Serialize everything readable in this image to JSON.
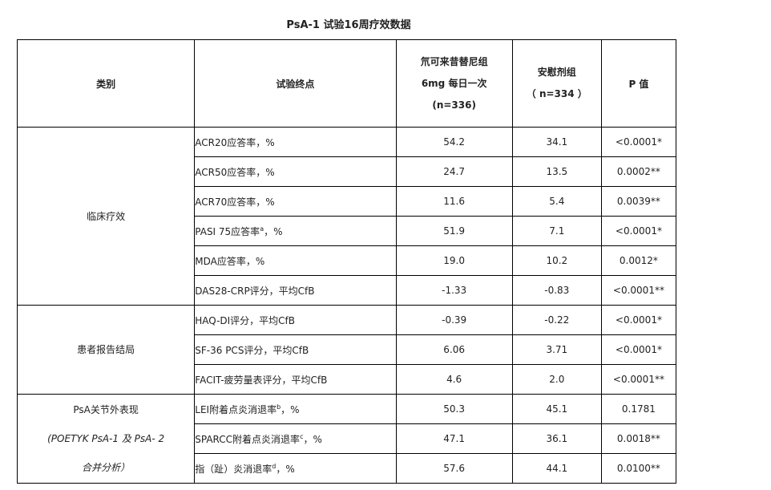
{
  "title": "PsA-1 试验16周疗效数据",
  "headers": {
    "category": "类别",
    "endpoint": "试验终点",
    "drug_line1": "氘可来昔替尼组",
    "drug_line2": "6mg 每日一次",
    "drug_line3": "(n=336)",
    "placebo_line1": "安慰剂组",
    "placebo_line2": "（ n=334 ）",
    "pvalue": "P 值"
  },
  "groups": [
    {
      "category": "临床疗效",
      "rows": [
        {
          "endpoint": "ACR20应答率，%",
          "sup": "",
          "suffix": "",
          "drug": "54.2",
          "placebo": "34.1",
          "p": "<0.0001*"
        },
        {
          "endpoint": "ACR50应答率，%",
          "sup": "",
          "suffix": "",
          "drug": "24.7",
          "placebo": "13.5",
          "p": "0.0002**"
        },
        {
          "endpoint": "ACR70应答率，%",
          "sup": "",
          "suffix": "",
          "drug": "11.6",
          "placebo": "5.4",
          "p": "0.0039**"
        },
        {
          "endpoint": "PASI 75应答率",
          "sup": "a",
          "suffix": "，%",
          "drug": "51.9",
          "placebo": "7.1",
          "p": "<0.0001*"
        },
        {
          "endpoint": "MDA应答率，%",
          "sup": "",
          "suffix": "",
          "drug": "19.0",
          "placebo": "10.2",
          "p": "0.0012*"
        },
        {
          "endpoint": "DAS28-CRP评分，平均CfB",
          "sup": "",
          "suffix": "",
          "drug": "-1.33",
          "placebo": "-0.83",
          "p": "<0.0001**"
        }
      ]
    },
    {
      "category": "患者报告结局",
      "rows": [
        {
          "endpoint": "HAQ-DI评分，平均CfB",
          "sup": "",
          "suffix": "",
          "drug": "-0.39",
          "placebo": "-0.22",
          "p": "<0.0001*"
        },
        {
          "endpoint": "SF-36 PCS评分，平均CfB",
          "sup": "",
          "suffix": "",
          "drug": "6.06",
          "placebo": "3.71",
          "p": "<0.0001*"
        },
        {
          "endpoint": "FACIT-疲劳量表评分，平均CfB",
          "sup": "",
          "suffix": "",
          "drug": "4.6",
          "placebo": "2.0",
          "p": "<0.0001**"
        }
      ]
    },
    {
      "category": "PsA关节外表现",
      "category_note_line1": "(POETYK PsA-1 及 PsA- 2",
      "category_note_line2": "合并分析）",
      "rows": [
        {
          "endpoint": "LEI附着点炎消退率",
          "sup": "b",
          "suffix": "，%",
          "drug": "50.3",
          "placebo": "45.1",
          "p": "0.1781"
        },
        {
          "endpoint": "SPARCC附着点炎消退率",
          "sup": "c",
          "suffix": "，%",
          "drug": "47.1",
          "placebo": "36.1",
          "p": "0.0018**"
        },
        {
          "endpoint": "指（趾）炎消退率",
          "sup": "d",
          "suffix": "，%",
          "drug": "57.6",
          "placebo": "44.1",
          "p": "0.0100**"
        }
      ]
    }
  ]
}
